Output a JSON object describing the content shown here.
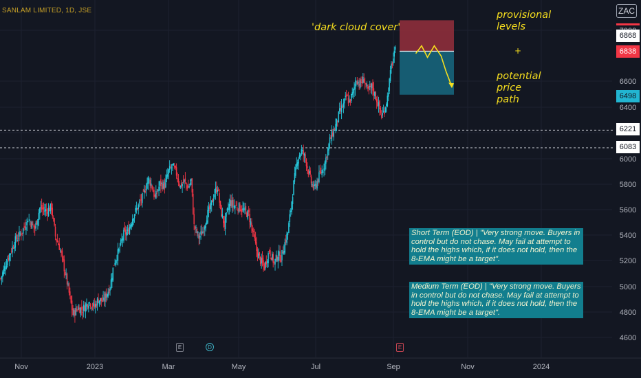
{
  "symbol": {
    "title": "SANLAM LIMITED, 1D, JSE",
    "badge": "ZAC"
  },
  "price_tags": [
    {
      "value": "6868",
      "bg": "#ffffff",
      "fg": "#131722"
    },
    {
      "value": "6838",
      "bg": "#f23645",
      "fg": "#ffffff"
    },
    {
      "value": "6498",
      "bg": "#22b5d1",
      "fg": "#131722"
    },
    {
      "value": "6221",
      "bg": "#ffffff",
      "fg": "#131722"
    },
    {
      "value": "6083",
      "bg": "#ffffff",
      "fg": "#131722"
    }
  ],
  "annotations": {
    "dark_cloud": "'dark cloud cover'",
    "provisional": "provisional\nlevels",
    "plus": "+",
    "potential": "potential\nprice\npath",
    "short_term": "Short Term (EOD) | \"Very strong move. Buyers in control but do not chase. May fail at attempt to hold the highs which, if it does not hold, then the 8-EMA might be a target\".",
    "medium_term": "Medium Term (EOD) | \"Very strong move. Buyers in control but do not chase. May fail at attempt to hold the highs which, if it does not hold, then the 8-EMA might be a target\"."
  },
  "events": [
    {
      "label": "E",
      "kind": "earnings"
    },
    {
      "label": "D",
      "kind": "dividend"
    },
    {
      "label": "E",
      "kind": "earnings-upcoming"
    }
  ],
  "colors": {
    "background": "#131722",
    "up": "#26c6da",
    "down": "#f23645",
    "risk_zone": "#8b2e3b",
    "reward_zone": "#17637a",
    "annotation": "#f7df1e",
    "note_box": "#127e8e"
  },
  "chart_data": {
    "type": "candlestick",
    "interval": "1D",
    "x_tick_labels": [
      "Nov",
      "2023",
      "Mar",
      "May",
      "Jul",
      "Sep",
      "Nov",
      "2024"
    ],
    "y_tick_labels": [
      "4600",
      "4800",
      "5000",
      "5200",
      "5400",
      "5600",
      "5800",
      "6000",
      "6200",
      "6400",
      "6600",
      "7000"
    ],
    "ylim": [
      4540,
      7250
    ],
    "close_path_anchors": [
      [
        0,
        5060
      ],
      [
        8,
        5230
      ],
      [
        15,
        5360
      ],
      [
        22,
        5430
      ],
      [
        28,
        5530
      ],
      [
        35,
        5450
      ],
      [
        40,
        5610
      ],
      [
        47,
        5590
      ],
      [
        52,
        5620
      ],
      [
        56,
        5390
      ],
      [
        60,
        5310
      ],
      [
        64,
        5180
      ],
      [
        68,
        5030
      ],
      [
        74,
        4780
      ],
      [
        79,
        4830
      ],
      [
        84,
        4820
      ],
      [
        90,
        4880
      ],
      [
        96,
        4840
      ],
      [
        100,
        4900
      ],
      [
        105,
        4880
      ],
      [
        112,
        5000
      ],
      [
        116,
        5180
      ],
      [
        121,
        5280
      ],
      [
        126,
        5410
      ],
      [
        130,
        5420
      ],
      [
        136,
        5560
      ],
      [
        141,
        5630
      ],
      [
        146,
        5710
      ],
      [
        151,
        5840
      ],
      [
        154,
        5800
      ],
      [
        158,
        5690
      ],
      [
        163,
        5800
      ],
      [
        168,
        5790
      ],
      [
        172,
        5900
      ],
      [
        176,
        5940
      ],
      [
        180,
        5880
      ],
      [
        184,
        5780
      ],
      [
        188,
        5820
      ],
      [
        192,
        5770
      ],
      [
        195,
        5830
      ],
      [
        198,
        5470
      ],
      [
        203,
        5380
      ],
      [
        207,
        5430
      ],
      [
        211,
        5550
      ],
      [
        215,
        5620
      ],
      [
        219,
        5730
      ],
      [
        222,
        5780
      ],
      [
        225,
        5600
      ],
      [
        229,
        5480
      ],
      [
        232,
        5580
      ],
      [
        235,
        5660
      ],
      [
        239,
        5630
      ],
      [
        244,
        5620
      ],
      [
        249,
        5590
      ],
      [
        254,
        5560
      ],
      [
        258,
        5430
      ],
      [
        262,
        5280
      ],
      [
        266,
        5200
      ],
      [
        270,
        5150
      ],
      [
        275,
        5280
      ],
      [
        280,
        5180
      ],
      [
        284,
        5250
      ],
      [
        287,
        5220
      ],
      [
        291,
        5340
      ],
      [
        294,
        5420
      ],
      [
        297,
        5600
      ],
      [
        300,
        5800
      ],
      [
        304,
        6000
      ],
      [
        308,
        6060
      ],
      [
        312,
        6000
      ],
      [
        315,
        5900
      ],
      [
        318,
        5810
      ],
      [
        321,
        5760
      ],
      [
        324,
        5820
      ],
      [
        327,
        5880
      ],
      [
        330,
        5920
      ],
      [
        333,
        6000
      ],
      [
        337,
        6140
      ],
      [
        341,
        6220
      ],
      [
        344,
        6280
      ],
      [
        347,
        6360
      ],
      [
        351,
        6420
      ],
      [
        354,
        6480
      ],
      [
        357,
        6440
      ],
      [
        361,
        6520
      ],
      [
        364,
        6620
      ],
      [
        368,
        6580
      ],
      [
        372,
        6620
      ],
      [
        376,
        6520
      ],
      [
        380,
        6560
      ],
      [
        384,
        6480
      ],
      [
        387,
        6410
      ],
      [
        390,
        6330
      ],
      [
        393,
        6380
      ],
      [
        396,
        6480
      ],
      [
        400,
        6720
      ],
      [
        404,
        6840
      ]
    ],
    "event_markers": [
      {
        "label": "E",
        "x": 187
      },
      {
        "label": "D",
        "x": 222
      },
      {
        "label": "E",
        "x": 420
      }
    ],
    "horizontal_levels": [
      6221,
      6083
    ],
    "position_tool": {
      "entry": 6838,
      "stop": 7080,
      "target": 6498
    },
    "potential_path": [
      [
        425,
        6820
      ],
      [
        431,
        6880
      ],
      [
        437,
        6790
      ],
      [
        444,
        6880
      ],
      [
        451,
        6800
      ],
      [
        456,
        6680
      ],
      [
        462,
        6560
      ]
    ],
    "current": {
      "last": 6838,
      "prev_close": 6868
    }
  }
}
